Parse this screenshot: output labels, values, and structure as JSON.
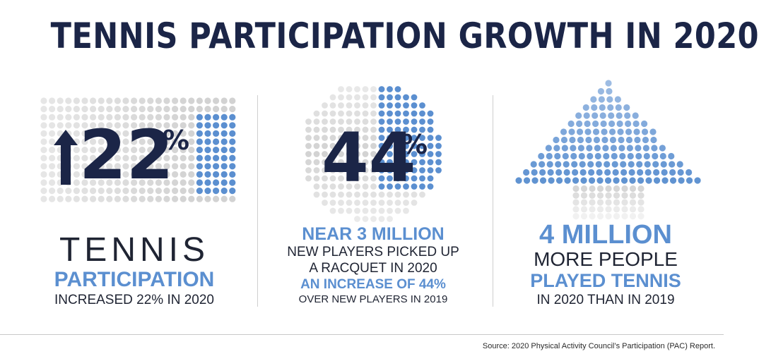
{
  "title": "TENNIS PARTICIPATION GROWTH IN 2020",
  "panels": [
    {
      "big_number": "22",
      "percent_sign": "%",
      "arrow_icon": "up-arrow-icon",
      "line1": "TENNIS",
      "line2": "PARTICIPATION",
      "line3": "INCREASED 22% IN 2020"
    },
    {
      "big_number": "44",
      "percent_sign": "%",
      "line1": "NEAR 3 MILLION",
      "line2": "NEW PLAYERS PICKED UP",
      "line3": "A RACQUET IN 2020",
      "line4": "AN INCREASE OF 44%",
      "line5": "OVER NEW PLAYERS IN 2019"
    },
    {
      "line1": "4 MILLION",
      "line2": "MORE PEOPLE",
      "line3": "PLAYED TENNIS",
      "line4": "IN 2020 THAN IN 2019"
    }
  ],
  "source": "Source: 2020 Physical Activity Council’s Participation (PAC) Report.",
  "colors": {
    "navy": "#1b2547",
    "blue": "#5b8fd0",
    "gray_dot": "#d2d2d2",
    "blue_dot": "#5b8fd0"
  }
}
